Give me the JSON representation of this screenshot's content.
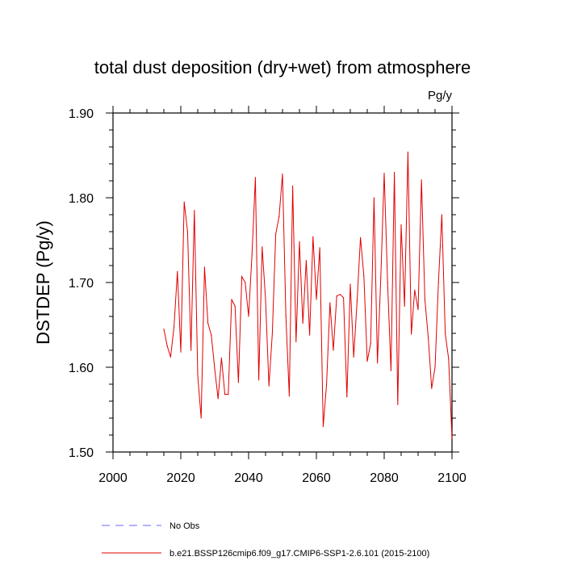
{
  "chart_data": {
    "type": "line",
    "title": "total dust deposition (dry+wet) from atmosphere",
    "units": "Pg/y",
    "ylabel": "DSTDEP  (Pg/y)",
    "xlabel": "",
    "xlim": [
      2000,
      2100
    ],
    "ylim": [
      1.5,
      1.9
    ],
    "x_ticks": [
      2000,
      2020,
      2040,
      2060,
      2080,
      2100
    ],
    "x_tick_labels": [
      "2000",
      "2020",
      "2040",
      "2060",
      "2080",
      "2100"
    ],
    "y_ticks": [
      1.5,
      1.6,
      1.7,
      1.8,
      1.9
    ],
    "y_tick_labels": [
      "1.50",
      "1.60",
      "1.70",
      "1.80",
      "1.90"
    ],
    "grid": false,
    "legend": [
      {
        "label": "No Obs",
        "color": "#6666ff",
        "style": "dashed"
      },
      {
        "label": "b.e21.BSSP126cmip6.f09_g17.CMIP6-SSP1-2.6.101 (2015-2100)",
        "color": "#e00000",
        "style": "solid"
      }
    ],
    "series": [
      {
        "name": "b.e21.BSSP126cmip6.f09_g17.CMIP6-SSP1-2.6.101 (2015-2100)",
        "color": "#e00000",
        "x": [
          2015,
          2016,
          2017,
          2018,
          2019,
          2020,
          2021,
          2022,
          2023,
          2024,
          2025,
          2026,
          2027,
          2028,
          2029,
          2030,
          2031,
          2032,
          2033,
          2034,
          2035,
          2036,
          2037,
          2038,
          2039,
          2040,
          2041,
          2042,
          2043,
          2044,
          2045,
          2046,
          2047,
          2048,
          2049,
          2050,
          2051,
          2052,
          2053,
          2054,
          2055,
          2056,
          2057,
          2058,
          2059,
          2060,
          2061,
          2062,
          2063,
          2064,
          2065,
          2066,
          2067,
          2068,
          2069,
          2070,
          2071,
          2072,
          2073,
          2074,
          2075,
          2076,
          2077,
          2078,
          2079,
          2080,
          2081,
          2082,
          2083,
          2084,
          2085,
          2086,
          2087,
          2088,
          2089,
          2090,
          2091,
          2092,
          2093,
          2094,
          2095,
          2096,
          2097,
          2098,
          2099,
          2100
        ],
        "values": [
          1.645,
          1.625,
          1.612,
          1.648,
          1.713,
          1.618,
          1.795,
          1.76,
          1.62,
          1.785,
          1.59,
          1.54,
          1.718,
          1.652,
          1.638,
          1.598,
          1.563,
          1.611,
          1.568,
          1.568,
          1.68,
          1.672,
          1.582,
          1.707,
          1.7,
          1.66,
          1.733,
          1.824,
          1.585,
          1.742,
          1.68,
          1.578,
          1.64,
          1.757,
          1.778,
          1.828,
          1.66,
          1.566,
          1.814,
          1.63,
          1.748,
          1.652,
          1.726,
          1.638,
          1.754,
          1.68,
          1.741,
          1.53,
          1.58,
          1.676,
          1.62,
          1.684,
          1.686,
          1.682,
          1.565,
          1.698,
          1.612,
          1.678,
          1.753,
          1.708,
          1.607,
          1.628,
          1.8,
          1.605,
          1.706,
          1.829,
          1.7,
          1.596,
          1.83,
          1.556,
          1.768,
          1.672,
          1.854,
          1.639,
          1.691,
          1.668,
          1.821,
          1.68,
          1.635,
          1.575,
          1.6,
          1.7,
          1.78,
          1.64,
          1.61,
          1.516
        ]
      }
    ]
  }
}
